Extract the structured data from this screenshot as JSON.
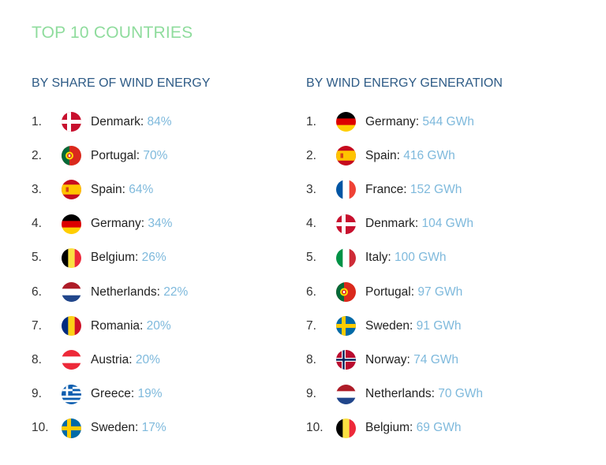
{
  "title": "TOP 10 COUNTRIES",
  "left": {
    "heading": "BY SHARE OF WIND ENERGY",
    "items": [
      {
        "rank": "1.",
        "country": "Denmark:",
        "value": "84%",
        "flag": "denmark-flag-icon"
      },
      {
        "rank": "2.",
        "country": "Portugal:",
        "value": "70%",
        "flag": "portugal-flag-icon"
      },
      {
        "rank": "3.",
        "country": "Spain:",
        "value": "64%",
        "flag": "spain-flag-icon"
      },
      {
        "rank": "4.",
        "country": "Germany:",
        "value": "34%",
        "flag": "germany-flag-icon"
      },
      {
        "rank": "5.",
        "country": "Belgium:",
        "value": "26%",
        "flag": "belgium-flag-icon"
      },
      {
        "rank": "6.",
        "country": "Netherlands:",
        "value": "22%",
        "flag": "netherlands-flag-icon"
      },
      {
        "rank": "7.",
        "country": "Romania:",
        "value": "20%",
        "flag": "romania-flag-icon"
      },
      {
        "rank": "8.",
        "country": "Austria:",
        "value": "20%",
        "flag": "austria-flag-icon"
      },
      {
        "rank": "9.",
        "country": "Greece:",
        "value": "19%",
        "flag": "greece-flag-icon"
      },
      {
        "rank": "10.",
        "country": "Sweden:",
        "value": "17%",
        "flag": "sweden-flag-icon"
      }
    ]
  },
  "right": {
    "heading": "BY WIND ENERGY GENERATION",
    "items": [
      {
        "rank": "1.",
        "country": "Germany:",
        "value": "544 GWh",
        "flag": "germany-flag-icon"
      },
      {
        "rank": "2.",
        "country": "Spain:",
        "value": "416 GWh",
        "flag": "spain-flag-icon"
      },
      {
        "rank": "3.",
        "country": "France:",
        "value": "152 GWh",
        "flag": "france-flag-icon"
      },
      {
        "rank": "4.",
        "country": "Denmark:",
        "value": "104 GWh",
        "flag": "denmark-flag-icon"
      },
      {
        "rank": "5.",
        "country": "Italy:",
        "value": "100 GWh",
        "flag": "italy-flag-icon"
      },
      {
        "rank": "6.",
        "country": "Portugal:",
        "value": "97 GWh",
        "flag": "portugal-flag-icon"
      },
      {
        "rank": "7.",
        "country": "Sweden:",
        "value": "91 GWh",
        "flag": "sweden-flag-icon"
      },
      {
        "rank": "8.",
        "country": "Norway:",
        "value": "74 GWh",
        "flag": "norway-flag-icon"
      },
      {
        "rank": "9.",
        "country": "Netherlands:",
        "value": "70 GWh",
        "flag": "netherlands-flag-icon"
      },
      {
        "rank": "10.",
        "country": "Belgium:",
        "value": "69 GWh",
        "flag": "belgium-flag-icon"
      }
    ]
  },
  "colors": {
    "title": "#8fdc9d",
    "heading": "#2e5b86",
    "value": "#7eb9dc"
  }
}
